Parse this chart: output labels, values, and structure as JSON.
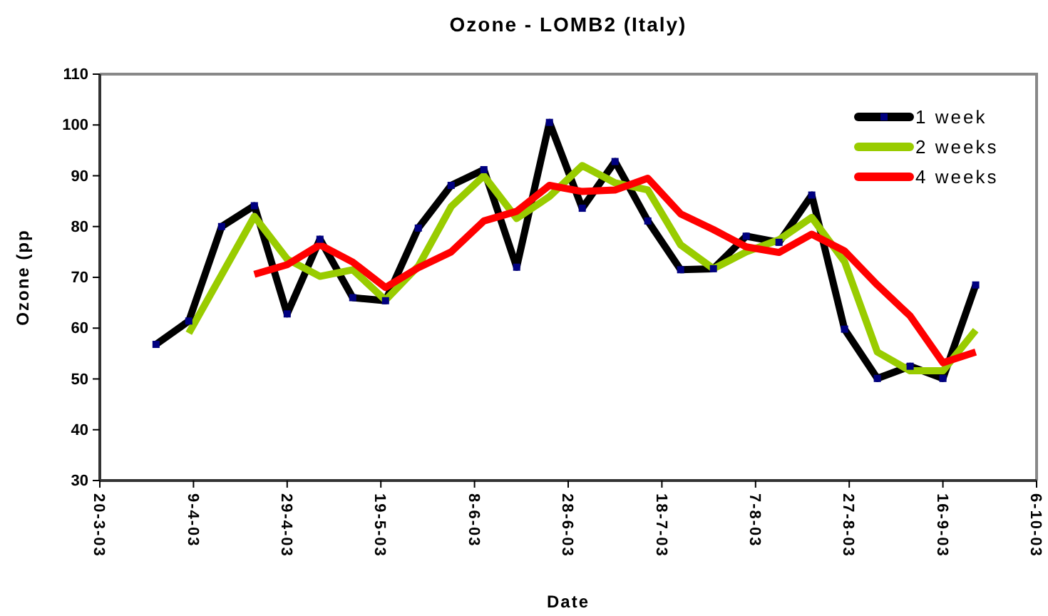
{
  "chart_data": {
    "type": "line",
    "title": "Ozone - LOMB2 (Italy)",
    "xlabel": "Date",
    "ylabel": "Ozone (pp",
    "x": [
      "2003-04-01",
      "2003-04-08",
      "2003-04-15",
      "2003-04-22",
      "2003-04-29",
      "2003-05-06",
      "2003-05-13",
      "2003-05-20",
      "2003-05-27",
      "2003-06-03",
      "2003-06-10",
      "2003-06-17",
      "2003-06-24",
      "2003-07-01",
      "2003-07-08",
      "2003-07-15",
      "2003-07-22",
      "2003-07-29",
      "2003-08-05",
      "2003-08-12",
      "2003-08-19",
      "2003-08-26",
      "2003-09-02",
      "2003-09-09",
      "2003-09-16",
      "2003-09-23"
    ],
    "series": [
      {
        "name": "1 week",
        "color": "#000000",
        "marker": "square",
        "values": [
          56.8,
          61.4,
          80.0,
          84.1,
          62.8,
          77.5,
          66.0,
          65.4,
          79.7,
          88.1,
          91.2,
          72.0,
          100.5,
          83.6,
          92.8,
          81.1,
          71.5,
          71.7,
          78.1,
          76.9,
          86.2,
          59.8,
          50.1,
          52.5,
          50.1,
          68.5
        ]
      },
      {
        "name": "2 weeks",
        "color": "#99cc00",
        "marker": "none",
        "values": [
          null,
          59.0,
          70.5,
          82.0,
          73.6,
          70.2,
          71.5,
          65.5,
          72.2,
          83.9,
          90.0,
          81.6,
          85.9,
          92.0,
          88.6,
          87.2,
          76.4,
          71.7,
          75.0,
          77.4,
          81.8,
          73.1,
          55.3,
          51.6,
          51.6,
          59.6
        ]
      },
      {
        "name": "4 weeks",
        "color": "#ff0000",
        "marker": "none",
        "values": [
          null,
          null,
          null,
          70.6,
          72.5,
          76.4,
          73.0,
          68.0,
          71.9,
          75.0,
          81.1,
          83.0,
          88.1,
          86.9,
          87.2,
          89.5,
          82.5,
          79.4,
          76.0,
          74.9,
          78.5,
          75.2,
          68.5,
          62.4,
          53.2,
          55.3
        ]
      }
    ],
    "xlim": [
      "2003-03-20",
      "2003-10-06"
    ],
    "xticks": [
      {
        "value": "2003-03-20",
        "label": "20-3-03"
      },
      {
        "value": "2003-04-09",
        "label": "9-4-03"
      },
      {
        "value": "2003-04-29",
        "label": "29-4-03"
      },
      {
        "value": "2003-05-19",
        "label": "19-5-03"
      },
      {
        "value": "2003-06-08",
        "label": "8-6-03"
      },
      {
        "value": "2003-06-28",
        "label": "28-6-03"
      },
      {
        "value": "2003-07-18",
        "label": "18-7-03"
      },
      {
        "value": "2003-08-07",
        "label": "7-8-03"
      },
      {
        "value": "2003-08-27",
        "label": "27-8-03"
      },
      {
        "value": "2003-09-16",
        "label": "16-9-03"
      },
      {
        "value": "2003-10-06",
        "label": "6-10-03"
      }
    ],
    "ylim": [
      30,
      110
    ],
    "yticks": [
      30,
      40,
      50,
      60,
      70,
      80,
      90,
      100,
      110
    ],
    "grid": false,
    "legend": "top right",
    "line_style": "solid"
  }
}
